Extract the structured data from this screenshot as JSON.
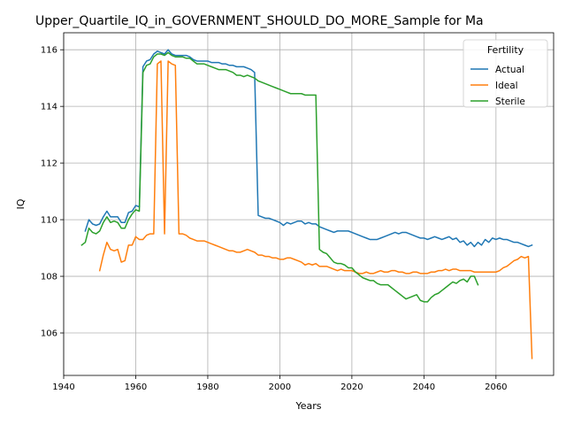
{
  "chart_data": {
    "type": "line",
    "title": "Upper_Quartile_IQ_in_GOVERNMENT_SHOULD_DO_MORE_Sample for Ma",
    "xlabel": "Years",
    "ylabel": "IQ",
    "xlim": [
      1940,
      2076
    ],
    "ylim": [
      104.5,
      116.6
    ],
    "xticks": [
      1940,
      1960,
      1980,
      2000,
      2020,
      2040,
      2060
    ],
    "yticks": [
      106,
      108,
      110,
      112,
      114,
      116
    ],
    "grid": true,
    "legend": {
      "title": "Fertility",
      "placement": "top-right"
    },
    "series": [
      {
        "name": "Actual",
        "color": "#1f77b4",
        "x": [
          1946,
          1947,
          1948,
          1949,
          1950,
          1951,
          1952,
          1953,
          1954,
          1955,
          1956,
          1957,
          1958,
          1959,
          1960,
          1961,
          1962,
          1963,
          1964,
          1965,
          1966,
          1967,
          1968,
          1969,
          1970,
          1971,
          1972,
          1973,
          1974,
          1975,
          1976,
          1977,
          1978,
          1979,
          1980,
          1981,
          1982,
          1983,
          1984,
          1985,
          1986,
          1987,
          1988,
          1989,
          1990,
          1991,
          1992,
          1993,
          1994,
          1995,
          1996,
          1997,
          1998,
          1999,
          2000,
          2001,
          2002,
          2003,
          2004,
          2005,
          2006,
          2007,
          2008,
          2009,
          2010,
          2011,
          2012,
          2013,
          2014,
          2015,
          2016,
          2017,
          2018,
          2019,
          2020,
          2021,
          2022,
          2023,
          2024,
          2025,
          2026,
          2027,
          2028,
          2029,
          2030,
          2031,
          2032,
          2033,
          2034,
          2035,
          2036,
          2037,
          2038,
          2039,
          2040,
          2041,
          2042,
          2043,
          2044,
          2045,
          2046,
          2047,
          2048,
          2049,
          2050,
          2051,
          2052,
          2053,
          2054,
          2055,
          2056,
          2057,
          2058,
          2059,
          2060,
          2061,
          2062,
          2063,
          2064,
          2065,
          2066,
          2067,
          2068,
          2069,
          2070
        ],
        "values": [
          109.6,
          110.0,
          109.85,
          109.8,
          109.85,
          110.1,
          110.3,
          110.1,
          110.1,
          110.1,
          109.9,
          109.9,
          110.25,
          110.3,
          110.5,
          110.45,
          115.4,
          115.6,
          115.65,
          115.85,
          115.95,
          115.9,
          115.85,
          116.0,
          115.85,
          115.8,
          115.8,
          115.8,
          115.8,
          115.75,
          115.65,
          115.6,
          115.6,
          115.6,
          115.6,
          115.55,
          115.55,
          115.55,
          115.5,
          115.5,
          115.45,
          115.45,
          115.4,
          115.4,
          115.4,
          115.35,
          115.3,
          115.2,
          110.15,
          110.1,
          110.05,
          110.05,
          110.0,
          109.95,
          109.9,
          109.8,
          109.9,
          109.85,
          109.9,
          109.95,
          109.95,
          109.85,
          109.9,
          109.85,
          109.85,
          109.75,
          109.7,
          109.65,
          109.6,
          109.55,
          109.6,
          109.6,
          109.6,
          109.6,
          109.55,
          109.5,
          109.45,
          109.4,
          109.35,
          109.3,
          109.3,
          109.3,
          109.35,
          109.4,
          109.45,
          109.5,
          109.55,
          109.5,
          109.55,
          109.55,
          109.5,
          109.45,
          109.4,
          109.35,
          109.35,
          109.3,
          109.35,
          109.4,
          109.35,
          109.3,
          109.35,
          109.4,
          109.3,
          109.35,
          109.2,
          109.25,
          109.1,
          109.2,
          109.05,
          109.2,
          109.1,
          109.3,
          109.2,
          109.35,
          109.3,
          109.35,
          109.3,
          109.3,
          109.25,
          109.2,
          109.2,
          109.15,
          109.1,
          109.05,
          109.1
        ]
      },
      {
        "name": "Ideal",
        "color": "#ff7f0e",
        "x": [
          1950,
          1951,
          1952,
          1953,
          1954,
          1955,
          1956,
          1957,
          1958,
          1959,
          1960,
          1961,
          1962,
          1963,
          1964,
          1965,
          1966,
          1967,
          1968,
          1969,
          1970,
          1971,
          1972,
          1973,
          1974,
          1975,
          1976,
          1977,
          1978,
          1979,
          1980,
          1981,
          1982,
          1983,
          1984,
          1985,
          1986,
          1987,
          1988,
          1989,
          1990,
          1991,
          1992,
          1993,
          1994,
          1995,
          1996,
          1997,
          1998,
          1999,
          2000,
          2001,
          2002,
          2003,
          2004,
          2005,
          2006,
          2007,
          2008,
          2009,
          2010,
          2011,
          2012,
          2013,
          2014,
          2015,
          2016,
          2017,
          2018,
          2019,
          2020,
          2021,
          2022,
          2023,
          2024,
          2025,
          2026,
          2027,
          2028,
          2029,
          2030,
          2031,
          2032,
          2033,
          2034,
          2035,
          2036,
          2037,
          2038,
          2039,
          2040,
          2041,
          2042,
          2043,
          2044,
          2045,
          2046,
          2047,
          2048,
          2049,
          2050,
          2051,
          2052,
          2053,
          2054,
          2055,
          2056,
          2057,
          2058,
          2059,
          2060,
          2061,
          2062,
          2063,
          2064,
          2065,
          2066,
          2067,
          2068,
          2069,
          2070
        ],
        "values": [
          108.2,
          108.75,
          109.2,
          108.95,
          108.9,
          108.95,
          108.5,
          108.55,
          109.1,
          109.1,
          109.4,
          109.3,
          109.3,
          109.45,
          109.5,
          109.5,
          115.5,
          115.6,
          109.5,
          115.6,
          115.5,
          115.45,
          109.5,
          109.5,
          109.45,
          109.35,
          109.3,
          109.25,
          109.25,
          109.25,
          109.2,
          109.15,
          109.1,
          109.05,
          109.0,
          108.95,
          108.9,
          108.9,
          108.85,
          108.85,
          108.9,
          108.95,
          108.9,
          108.85,
          108.75,
          108.75,
          108.7,
          108.7,
          108.65,
          108.65,
          108.6,
          108.6,
          108.65,
          108.65,
          108.6,
          108.55,
          108.5,
          108.4,
          108.45,
          108.4,
          108.45,
          108.35,
          108.35,
          108.35,
          108.3,
          108.25,
          108.2,
          108.25,
          108.2,
          108.2,
          108.2,
          108.15,
          108.1,
          108.1,
          108.15,
          108.1,
          108.1,
          108.15,
          108.2,
          108.15,
          108.15,
          108.2,
          108.2,
          108.15,
          108.15,
          108.1,
          108.1,
          108.15,
          108.15,
          108.1,
          108.1,
          108.1,
          108.15,
          108.15,
          108.2,
          108.2,
          108.25,
          108.2,
          108.25,
          108.25,
          108.2,
          108.2,
          108.2,
          108.2,
          108.15,
          108.15,
          108.15,
          108.15,
          108.15,
          108.15,
          108.15,
          108.2,
          108.3,
          108.35,
          108.45,
          108.55,
          108.6,
          108.7,
          108.65,
          108.7,
          105.1
        ]
      },
      {
        "name": "Sterile",
        "color": "#2ca02c",
        "x": [
          1945,
          1946,
          1947,
          1948,
          1949,
          1950,
          1951,
          1952,
          1953,
          1954,
          1955,
          1956,
          1957,
          1958,
          1959,
          1960,
          1961,
          1962,
          1963,
          1964,
          1965,
          1966,
          1967,
          1968,
          1969,
          1970,
          1971,
          1972,
          1973,
          1974,
          1975,
          1976,
          1977,
          1978,
          1979,
          1980,
          1981,
          1982,
          1983,
          1984,
          1985,
          1986,
          1987,
          1988,
          1989,
          1990,
          1991,
          1992,
          1993,
          1994,
          1995,
          1996,
          1997,
          1998,
          1999,
          2000,
          2001,
          2002,
          2003,
          2004,
          2005,
          2006,
          2007,
          2008,
          2009,
          2010,
          2011,
          2012,
          2013,
          2014,
          2015,
          2016,
          2017,
          2018,
          2019,
          2020,
          2021,
          2022,
          2023,
          2024,
          2025,
          2026,
          2027,
          2028,
          2029,
          2030,
          2031,
          2032,
          2033,
          2034,
          2035,
          2036,
          2037,
          2038,
          2039,
          2040,
          2041,
          2042,
          2043,
          2044,
          2045,
          2046,
          2047,
          2048,
          2049,
          2050,
          2051,
          2052,
          2053,
          2054,
          2055
        ],
        "values": [
          109.1,
          109.2,
          109.7,
          109.55,
          109.5,
          109.6,
          109.9,
          110.1,
          109.9,
          109.95,
          109.9,
          109.7,
          109.7,
          110.0,
          110.2,
          110.35,
          110.3,
          115.2,
          115.45,
          115.5,
          115.75,
          115.85,
          115.85,
          115.8,
          115.9,
          115.8,
          115.75,
          115.75,
          115.75,
          115.7,
          115.7,
          115.6,
          115.5,
          115.5,
          115.5,
          115.45,
          115.4,
          115.35,
          115.3,
          115.3,
          115.3,
          115.25,
          115.2,
          115.1,
          115.1,
          115.05,
          115.1,
          115.05,
          115.0,
          114.9,
          114.85,
          114.8,
          114.75,
          114.7,
          114.65,
          114.6,
          114.55,
          114.5,
          114.45,
          114.45,
          114.45,
          114.45,
          114.4,
          114.4,
          114.4,
          114.4,
          108.95,
          108.85,
          108.8,
          108.65,
          108.5,
          108.45,
          108.45,
          108.4,
          108.3,
          108.3,
          108.15,
          108.05,
          107.95,
          107.9,
          107.85,
          107.85,
          107.75,
          107.7,
          107.7,
          107.7,
          107.6,
          107.5,
          107.4,
          107.3,
          107.2,
          107.25,
          107.3,
          107.35,
          107.15,
          107.1,
          107.1,
          107.25,
          107.35,
          107.4,
          107.5,
          107.6,
          107.7,
          107.8,
          107.75,
          107.85,
          107.9,
          107.8,
          108.0,
          108.0,
          107.7
        ]
      }
    ]
  }
}
